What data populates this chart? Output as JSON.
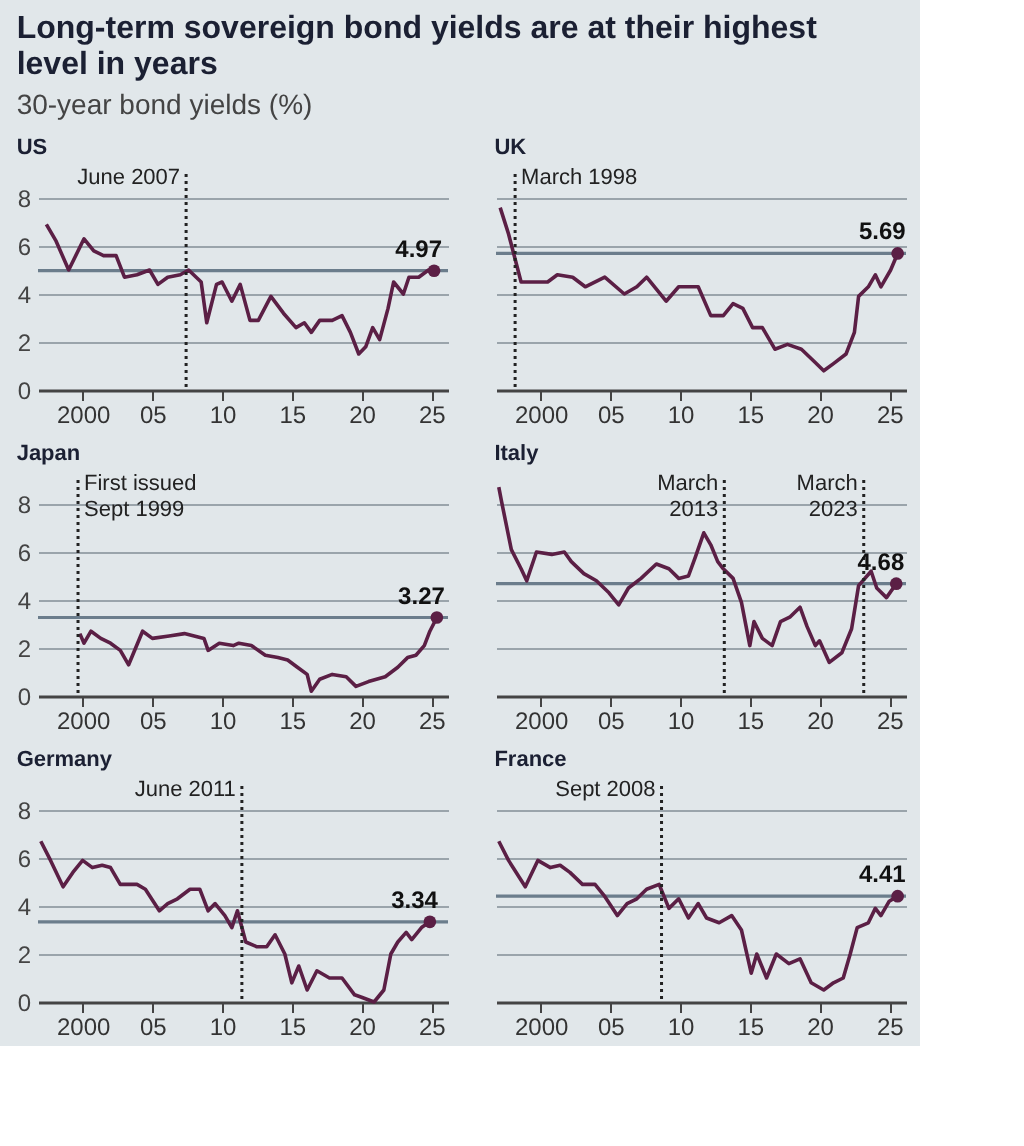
{
  "chart_data": [
    {
      "type": "other",
      "title": "Long-term sovereign bond yields are at their highest level in years",
      "subtitle": "30-year bond yields (%)"
    },
    {
      "type": "line",
      "title": "US",
      "color": "#5b1f45",
      "grid": "y",
      "xlim": [
        1996.8,
        2026.2
      ],
      "ylim": [
        0,
        9
      ],
      "xticks": [
        2000,
        {
          "value": 2005,
          "label": "05"
        },
        {
          "value": 2010,
          "label": "10"
        },
        {
          "value": 2015,
          "label": "15"
        },
        {
          "value": 2020,
          "label": "20"
        },
        {
          "value": 2025,
          "label": "25"
        }
      ],
      "yticks": [
        0,
        2,
        4,
        6,
        8
      ],
      "x": [
        1997.4,
        1998.1,
        1999.0,
        2000.1,
        2000.8,
        2001.5,
        2002.4,
        2003.0,
        2003.9,
        2004.8,
        2005.4,
        2006.1,
        2007.0,
        2007.6,
        2008.5,
        2008.9,
        2009.6,
        2010.0,
        2010.7,
        2011.3,
        2012.0,
        2012.6,
        2013.5,
        2014.4,
        2015.3,
        2015.9,
        2016.4,
        2017.0,
        2017.9,
        2018.6,
        2019.2,
        2019.8,
        2020.3,
        2020.8,
        2021.3,
        2021.9,
        2022.3,
        2023.0,
        2023.4,
        2024.1,
        2024.8,
        2025.2
      ],
      "values": [
        6.9,
        6.2,
        5.0,
        6.3,
        5.8,
        5.6,
        5.6,
        4.7,
        4.8,
        5.0,
        4.4,
        4.7,
        4.8,
        5.0,
        4.5,
        2.8,
        4.4,
        4.5,
        3.7,
        4.4,
        2.9,
        2.9,
        3.9,
        3.2,
        2.6,
        2.8,
        2.4,
        2.9,
        2.9,
        3.1,
        2.4,
        1.5,
        1.8,
        2.6,
        2.1,
        3.4,
        4.5,
        4.0,
        4.7,
        4.7,
        5.0,
        4.97
      ],
      "ref_lines": [
        {
          "axis": "x",
          "value": 2007.42,
          "label": "June 2007",
          "line_style": "dotted",
          "color": "#222222"
        },
        {
          "axis": "y",
          "value": 4.97,
          "color": "#6b7d8c"
        }
      ],
      "annotations": [
        {
          "text": "4.97",
          "x": 2025.2,
          "y": 4.97
        }
      ]
    },
    {
      "type": "line",
      "title": "UK",
      "color": "#5b1f45",
      "grid": "y",
      "tick_labels": "x",
      "xlim": [
        1996.8,
        2026.2
      ],
      "ylim": [
        0,
        9
      ],
      "xticks": [
        2000,
        {
          "value": 2005,
          "label": "05"
        },
        {
          "value": 2010,
          "label": "10"
        },
        {
          "value": 2015,
          "label": "15"
        },
        {
          "value": 2020,
          "label": "20"
        },
        {
          "value": 2025,
          "label": "25"
        }
      ],
      "yticks": [
        0,
        2,
        4,
        6,
        8
      ],
      "x": [
        1997.1,
        1997.7,
        1998.6,
        1999.5,
        2000.5,
        2001.2,
        2002.3,
        2003.2,
        2004.6,
        2006.0,
        2006.9,
        2007.6,
        2008.3,
        2009.0,
        2009.9,
        2011.3,
        2012.2,
        2013.1,
        2013.8,
        2014.5,
        2015.2,
        2015.9,
        2016.8,
        2017.7,
        2018.7,
        2019.6,
        2020.3,
        2021.0,
        2021.9,
        2022.5,
        2022.8,
        2023.5,
        2024.0,
        2024.4,
        2025.1,
        2025.6
      ],
      "values": [
        7.6,
        6.5,
        4.5,
        4.5,
        4.5,
        4.8,
        4.7,
        4.3,
        4.7,
        4.0,
        4.3,
        4.7,
        4.2,
        3.7,
        4.3,
        4.3,
        3.1,
        3.1,
        3.6,
        3.4,
        2.6,
        2.6,
        1.7,
        1.9,
        1.7,
        1.2,
        0.8,
        1.1,
        1.5,
        2.4,
        3.9,
        4.3,
        4.8,
        4.3,
        5.0,
        5.69
      ],
      "ref_lines": [
        {
          "axis": "x",
          "value": 1998.17,
          "label": "March 1998",
          "line_style": "dotted",
          "color": "#222222"
        },
        {
          "axis": "y",
          "value": 5.69,
          "color": "#6b7d8c"
        }
      ],
      "annotations": [
        {
          "text": "5.69",
          "x": 2025.6,
          "y": 5.69
        }
      ]
    },
    {
      "type": "line",
      "title": "Japan",
      "color": "#5b1f45",
      "grid": "y",
      "xlim": [
        1996.8,
        2026.2
      ],
      "ylim": [
        0,
        9
      ],
      "xticks": [
        2000,
        {
          "value": 2005,
          "label": "05"
        },
        {
          "value": 2010,
          "label": "10"
        },
        {
          "value": 2015,
          "label": "15"
        },
        {
          "value": 2020,
          "label": "20"
        },
        {
          "value": 2025,
          "label": "25"
        }
      ],
      "yticks": [
        0,
        2,
        4,
        6,
        8
      ],
      "x": [
        1999.8,
        2000.1,
        2000.6,
        2001.3,
        2002.0,
        2002.7,
        2003.3,
        2004.3,
        2005.0,
        2006.2,
        2007.3,
        2008.7,
        2009.0,
        2009.8,
        2010.8,
        2011.2,
        2012.1,
        2013.1,
        2014.0,
        2014.7,
        2015.4,
        2016.1,
        2016.4,
        2017.0,
        2017.9,
        2018.9,
        2019.6,
        2020.5,
        2021.7,
        2022.6,
        2023.3,
        2023.9,
        2024.5,
        2024.9,
        2025.4
      ],
      "values": [
        2.6,
        2.2,
        2.7,
        2.4,
        2.2,
        1.9,
        1.3,
        2.7,
        2.4,
        2.5,
        2.6,
        2.4,
        1.9,
        2.2,
        2.1,
        2.2,
        2.1,
        1.7,
        1.6,
        1.5,
        1.2,
        0.9,
        0.2,
        0.7,
        0.9,
        0.8,
        0.4,
        0.6,
        0.8,
        1.2,
        1.6,
        1.7,
        2.1,
        2.7,
        3.27
      ],
      "ref_lines": [
        {
          "axis": "x",
          "value": 1999.67,
          "label": "First issued\nSept 1999",
          "line_style": "dotted",
          "color": "#222222"
        },
        {
          "axis": "y",
          "value": 3.27,
          "color": "#6b7d8c"
        }
      ],
      "annotations": [
        {
          "text": "3.27",
          "x": 2025.4,
          "y": 3.27
        }
      ]
    },
    {
      "type": "line",
      "title": "Italy",
      "color": "#5b1f45",
      "grid": "y",
      "tick_labels": "x",
      "xlim": [
        1996.8,
        2026.2
      ],
      "ylim": [
        0,
        9
      ],
      "xticks": [
        2000,
        {
          "value": 2005,
          "label": "05"
        },
        {
          "value": 2010,
          "label": "10"
        },
        {
          "value": 2015,
          "label": "15"
        },
        {
          "value": 2020,
          "label": "20"
        },
        {
          "value": 2025,
          "label": "25"
        }
      ],
      "yticks": [
        0,
        2,
        4,
        6,
        8
      ],
      "x": [
        1997.0,
        1997.2,
        1997.9,
        1998.6,
        1999.0,
        1999.7,
        2000.8,
        2001.7,
        2002.2,
        2003.1,
        2004.0,
        2004.9,
        2005.6,
        2006.3,
        2007.2,
        2008.3,
        2009.2,
        2009.9,
        2010.6,
        2011.1,
        2011.7,
        2012.2,
        2012.7,
        2013.1,
        2013.8,
        2014.4,
        2015.0,
        2015.3,
        2015.9,
        2016.6,
        2017.2,
        2017.9,
        2018.6,
        2019.1,
        2019.7,
        2020.0,
        2020.7,
        2021.6,
        2022.3,
        2022.8,
        2023.7,
        2024.1,
        2024.8,
        2025.5
      ],
      "values": [
        8.7,
        8.1,
        6.1,
        5.3,
        4.8,
        6.0,
        5.9,
        6.0,
        5.6,
        5.1,
        4.8,
        4.3,
        3.8,
        4.5,
        4.9,
        5.5,
        5.3,
        4.9,
        5.0,
        5.8,
        6.8,
        6.3,
        5.6,
        5.3,
        4.9,
        3.9,
        2.1,
        3.1,
        2.4,
        2.1,
        3.1,
        3.3,
        3.7,
        2.9,
        2.1,
        2.3,
        1.4,
        1.8,
        2.8,
        4.6,
        5.2,
        4.5,
        4.1,
        4.68
      ],
      "ref_lines": [
        {
          "axis": "x",
          "value": 2013.17,
          "label": "March\n2013",
          "line_style": "dotted",
          "color": "#222222"
        },
        {
          "axis": "x",
          "value": 2023.17,
          "label": "March\n2023",
          "line_style": "dotted",
          "color": "#222222"
        },
        {
          "axis": "y",
          "value": 4.68,
          "color": "#6b7d8c"
        }
      ],
      "annotations": [
        {
          "text": "4.68",
          "x": 2025.5,
          "y": 4.68
        }
      ]
    },
    {
      "type": "line",
      "title": "Germany",
      "color": "#5b1f45",
      "grid": "y",
      "xlim": [
        1996.8,
        2026.2
      ],
      "ylim": [
        0,
        9
      ],
      "xticks": [
        2000,
        {
          "value": 2005,
          "label": "05"
        },
        {
          "value": 2010,
          "label": "10"
        },
        {
          "value": 2015,
          "label": "15"
        },
        {
          "value": 2020,
          "label": "20"
        },
        {
          "value": 2025,
          "label": "25"
        }
      ],
      "yticks": [
        0,
        2,
        4,
        6,
        8
      ],
      "x": [
        1997.0,
        1997.7,
        1998.6,
        1999.3,
        2000.0,
        2000.7,
        2001.4,
        2002.0,
        2002.7,
        2003.9,
        2004.5,
        2005.5,
        2006.1,
        2006.8,
        2007.7,
        2008.4,
        2009.0,
        2009.5,
        2010.2,
        2010.7,
        2011.1,
        2011.7,
        2012.5,
        2013.2,
        2013.8,
        2014.5,
        2015.0,
        2015.5,
        2016.1,
        2016.8,
        2017.7,
        2018.6,
        2019.5,
        2020.0,
        2020.9,
        2021.6,
        2022.1,
        2022.6,
        2023.2,
        2023.6,
        2024.3,
        2024.9
      ],
      "values": [
        6.7,
        5.9,
        4.8,
        5.4,
        5.9,
        5.6,
        5.7,
        5.6,
        4.9,
        4.9,
        4.7,
        3.8,
        4.1,
        4.3,
        4.7,
        4.7,
        3.8,
        4.1,
        3.6,
        3.1,
        3.8,
        2.5,
        2.3,
        2.3,
        2.8,
        2.0,
        0.8,
        1.5,
        0.5,
        1.3,
        1.0,
        1.0,
        0.3,
        0.2,
        0.0,
        0.5,
        2.0,
        2.5,
        2.9,
        2.6,
        3.1,
        3.34
      ],
      "ref_lines": [
        {
          "axis": "x",
          "value": 2011.42,
          "label": "June 2011",
          "line_style": "dotted",
          "color": "#222222"
        },
        {
          "axis": "y",
          "value": 3.34,
          "color": "#6b7d8c"
        }
      ],
      "annotations": [
        {
          "text": "3.34",
          "x": 2024.9,
          "y": 3.34
        }
      ]
    },
    {
      "type": "line",
      "title": "France",
      "color": "#5b1f45",
      "grid": "y",
      "tick_labels": "x",
      "xlim": [
        1996.8,
        2026.2
      ],
      "ylim": [
        0,
        9
      ],
      "xticks": [
        2000,
        {
          "value": 2005,
          "label": "05"
        },
        {
          "value": 2010,
          "label": "10"
        },
        {
          "value": 2015,
          "label": "15"
        },
        {
          "value": 2020,
          "label": "20"
        },
        {
          "value": 2025,
          "label": "25"
        }
      ],
      "yticks": [
        0,
        2,
        4,
        6,
        8
      ],
      "x": [
        1997.0,
        1997.7,
        1998.9,
        1999.8,
        2000.7,
        2001.4,
        2002.1,
        2003.0,
        2003.9,
        2004.6,
        2005.5,
        2006.2,
        2006.9,
        2007.6,
        2008.5,
        2009.2,
        2009.9,
        2010.6,
        2011.3,
        2011.9,
        2012.8,
        2013.7,
        2014.4,
        2015.1,
        2015.5,
        2016.2,
        2016.9,
        2017.8,
        2018.6,
        2019.4,
        2020.3,
        2021.0,
        2021.7,
        2022.2,
        2022.7,
        2023.5,
        2024.0,
        2024.4,
        2025.0,
        2025.6
      ],
      "values": [
        6.7,
        5.9,
        4.8,
        5.9,
        5.6,
        5.7,
        5.4,
        4.9,
        4.9,
        4.4,
        3.6,
        4.1,
        4.3,
        4.7,
        4.9,
        3.9,
        4.3,
        3.5,
        4.1,
        3.5,
        3.3,
        3.6,
        3.0,
        1.2,
        2.0,
        1.0,
        2.0,
        1.6,
        1.8,
        0.8,
        0.5,
        0.8,
        1.0,
        2.0,
        3.1,
        3.3,
        3.9,
        3.6,
        4.2,
        4.41
      ],
      "ref_lines": [
        {
          "axis": "x",
          "value": 2008.67,
          "label": "Sept 2008",
          "line_style": "dotted",
          "color": "#222222"
        },
        {
          "axis": "y",
          "value": 4.41,
          "color": "#6b7d8c"
        }
      ],
      "annotations": [
        {
          "text": "4.41",
          "x": 2025.6,
          "y": 4.41
        }
      ]
    }
  ]
}
